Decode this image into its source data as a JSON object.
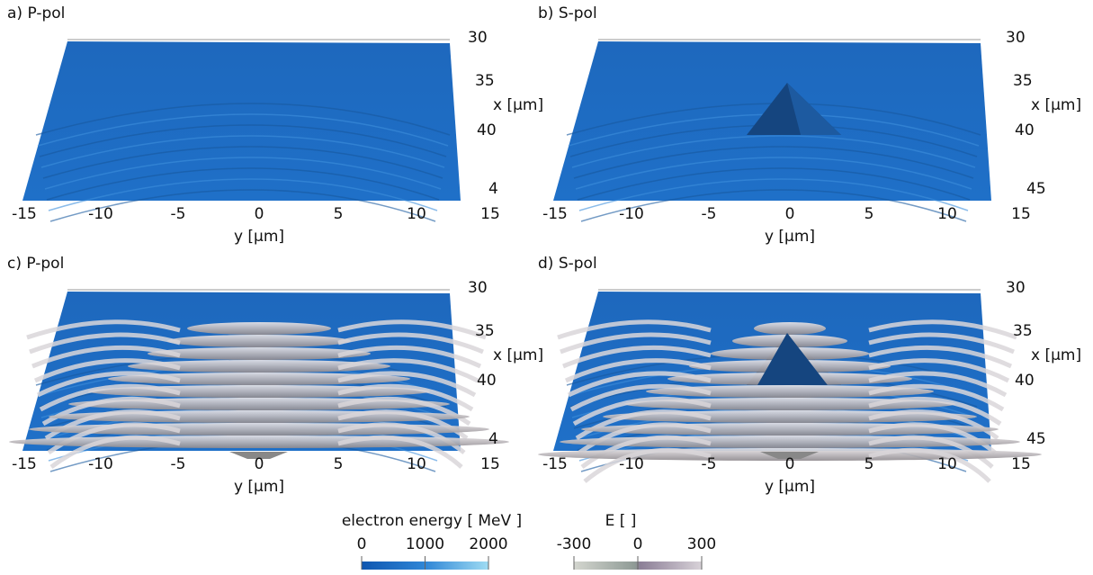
{
  "panels": [
    {
      "title": "a) P-pol",
      "y_axis_label": "y [μm]",
      "x_axis_label": "x [μm]",
      "y_ticks": [
        "-15",
        "-10",
        "-5",
        "0",
        "5",
        "10",
        "15"
      ],
      "x_ticks": [
        "30",
        "35",
        "40",
        "4"
      ]
    },
    {
      "title": "b) S-pol",
      "y_axis_label": "y [μm]",
      "x_axis_label": "x [μm]",
      "y_ticks": [
        "-15",
        "-10",
        "-5",
        "0",
        "5",
        "10",
        "15"
      ],
      "x_ticks": [
        "30",
        "35",
        "40",
        "45"
      ]
    },
    {
      "title": "c) P-pol",
      "y_axis_label": "y [μm]",
      "x_axis_label": "x [μm]",
      "y_ticks": [
        "-15",
        "-10",
        "-5",
        "0",
        "5",
        "10",
        "15"
      ],
      "x_ticks": [
        "30",
        "35",
        "40",
        "4"
      ]
    },
    {
      "title": "d) S-pol",
      "y_axis_label": "y [μm]",
      "x_axis_label": "x [μm]",
      "y_ticks": [
        "-15",
        "-10",
        "-5",
        "0",
        "5",
        "10",
        "15"
      ],
      "x_ticks": [
        "30",
        "35",
        "40",
        "45"
      ]
    }
  ],
  "colorbars": [
    {
      "label": "electron energy [ MeV ]",
      "ticks": [
        "0",
        "1000",
        "2000"
      ]
    },
    {
      "label": "E [ ]",
      "ticks": [
        "-300",
        "0",
        "300"
      ]
    }
  ]
}
